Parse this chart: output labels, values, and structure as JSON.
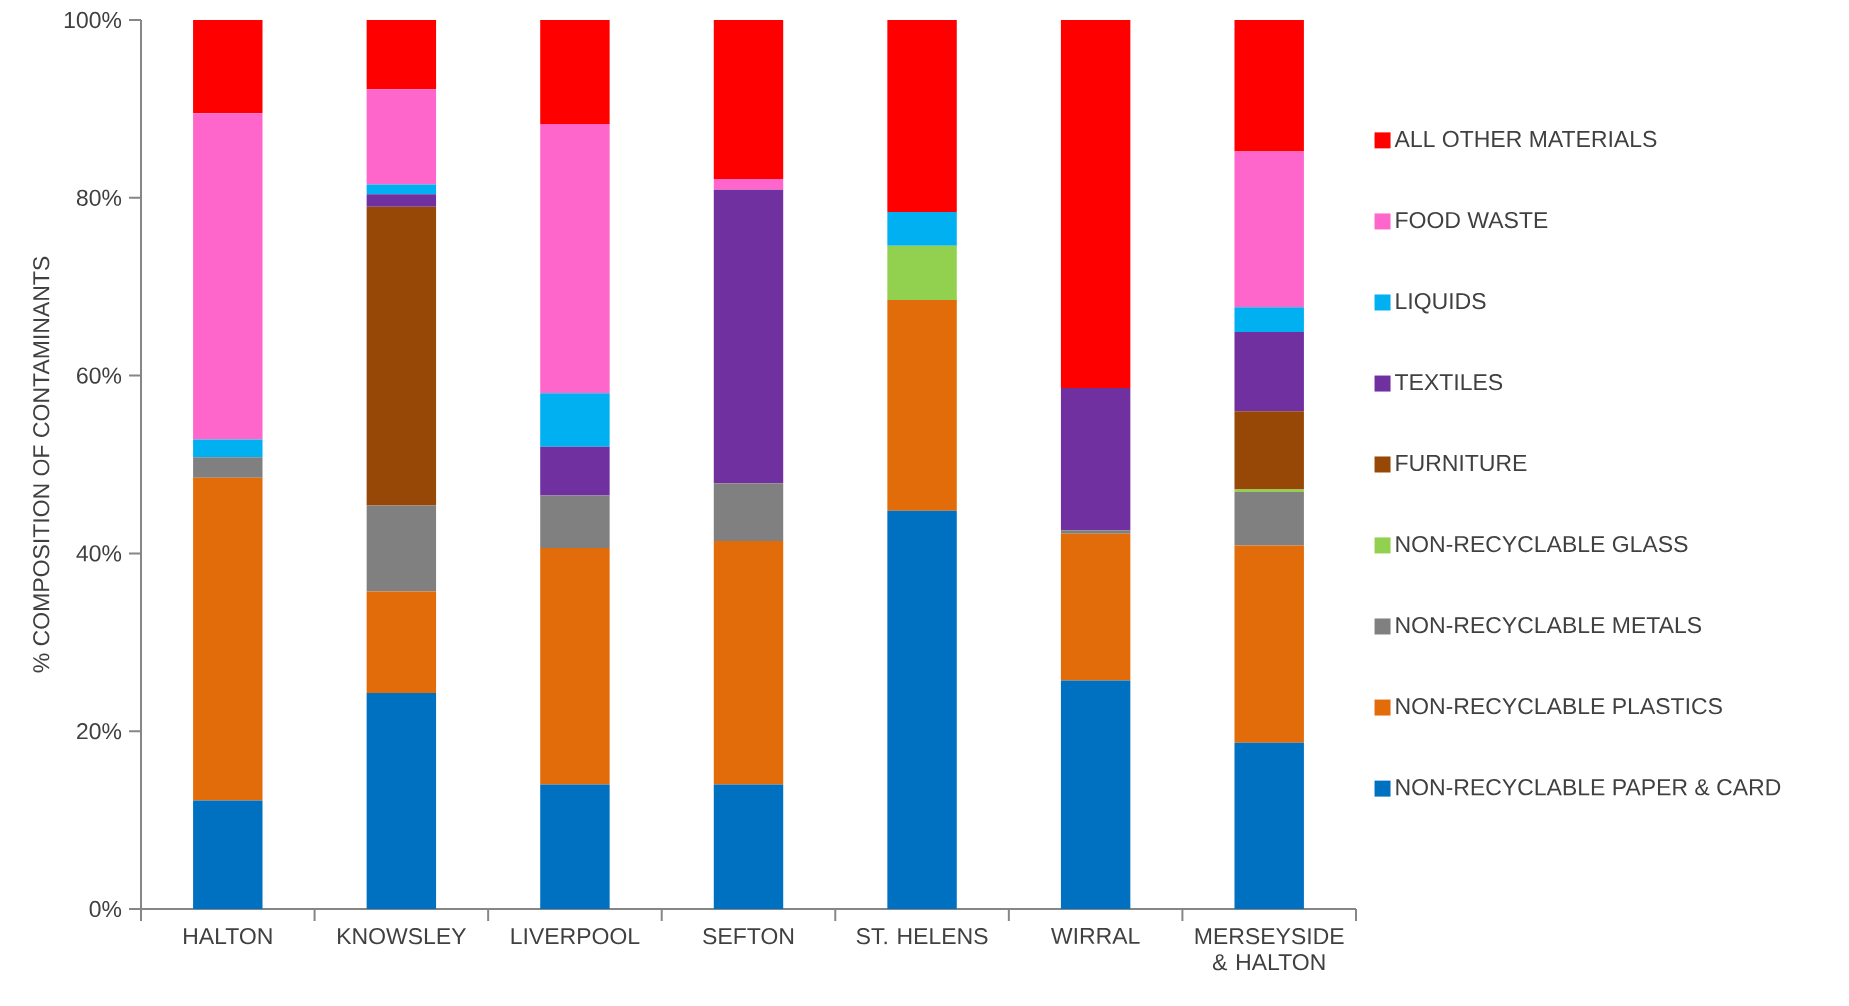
{
  "chart_data": {
    "type": "bar",
    "stacked": true,
    "ylabel": "% COMPOSITION OF CONTAMINANTS",
    "categories": [
      "HALTON",
      "KNOWSLEY",
      "LIVERPOOL",
      "SEFTON",
      "ST. HELENS",
      "WIRRAL",
      "MERSEYSIDE & HALTON"
    ],
    "series": [
      {
        "name": "NON-RECYCLABLE PAPER & CARD",
        "color": "#0070c0",
        "values": [
          12.2,
          24.3,
          14.0,
          14.0,
          44.8,
          25.7,
          18.7
        ]
      },
      {
        "name": "NON-RECYCLABLE PLASTICS",
        "color": "#e36c0a",
        "values": [
          36.3,
          11.4,
          26.6,
          27.4,
          23.7,
          16.5,
          22.2
        ]
      },
      {
        "name": "NON-RECYCLABLE METALS",
        "color": "#808080",
        "values": [
          2.3,
          9.7,
          5.9,
          6.5,
          0,
          0.4,
          6.0
        ]
      },
      {
        "name": "NON-RECYCLABLE GLASS",
        "color": "#92d050",
        "values": [
          0,
          0,
          0,
          0,
          6.1,
          0,
          0.3
        ]
      },
      {
        "name": "FURNITURE",
        "color": "#974706",
        "values": [
          0,
          33.6,
          0,
          0,
          0,
          0,
          8.8
        ]
      },
      {
        "name": "TEXTILES",
        "color": "#7030a0",
        "values": [
          0,
          1.4,
          5.5,
          33.0,
          0,
          16.0,
          8.9
        ]
      },
      {
        "name": "LIQUIDS",
        "color": "#00b0f0",
        "values": [
          2.0,
          1.1,
          6.0,
          0,
          3.8,
          0,
          2.8
        ]
      },
      {
        "name": "FOOD WASTE",
        "color": "#ff66cc",
        "values": [
          36.7,
          10.7,
          30.3,
          1.2,
          0,
          0,
          17.5
        ]
      },
      {
        "name": "ALL OTHER MATERIALS",
        "color": "#ff0000",
        "values": [
          10.5,
          7.8,
          11.7,
          17.9,
          21.6,
          41.4,
          14.8
        ]
      }
    ],
    "ylim": [
      0,
      100
    ],
    "yticks": [
      {
        "value": 0,
        "label": "0%"
      },
      {
        "value": 20,
        "label": "20%"
      },
      {
        "value": 40,
        "label": "40%"
      },
      {
        "value": 60,
        "label": "60%"
      },
      {
        "value": 80,
        "label": "80%"
      },
      {
        "value": 100,
        "label": "100%"
      }
    ],
    "grid": false,
    "legend": "right"
  }
}
